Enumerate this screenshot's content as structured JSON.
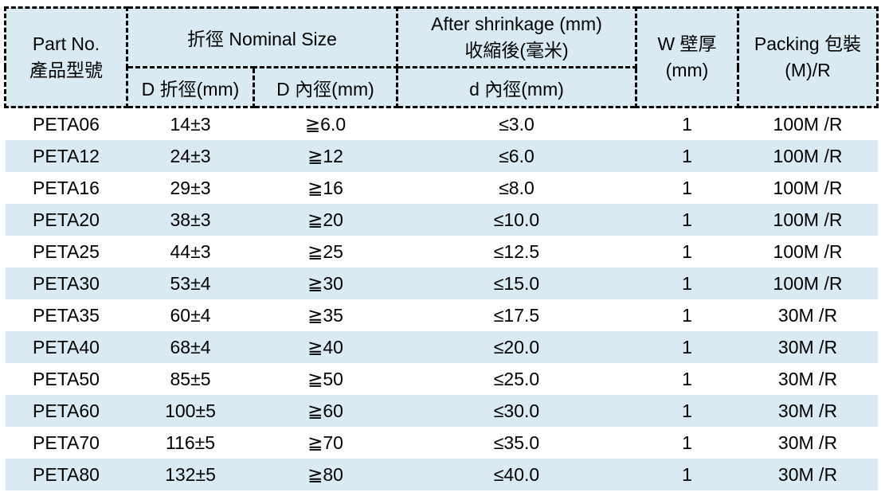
{
  "colors": {
    "header_bg": "#d9eaf2",
    "stripe_bg": "#d9eaf2",
    "row_bg": "#ffffff",
    "border_color": "#000000",
    "text_color": "#000000"
  },
  "header": {
    "part_no_en": "Part No.",
    "part_no_zh": "產品型號",
    "nominal_size": "折徑  Nominal Size",
    "d_flat": "D 折徑(mm)",
    "d_inner": "D 內徑(mm)",
    "after_en": "After shrinkage (mm)",
    "after_zh": "收縮後(毫米)",
    "d_after": "d 內徑(mm)",
    "wall_l1": "W 壁厚",
    "wall_l2": "(mm)",
    "packing_l1": "Packing 包裝",
    "packing_l2": "(M)/R"
  },
  "rows": [
    {
      "part_no": "PETA06",
      "d_flat": "14±3",
      "d_inner": "≧6.0",
      "d_after": "≤3.0",
      "wall": "1",
      "packing": "100M /R"
    },
    {
      "part_no": "PETA12",
      "d_flat": "24±3",
      "d_inner": "≧12",
      "d_after": "≤6.0",
      "wall": "1",
      "packing": "100M /R"
    },
    {
      "part_no": "PETA16",
      "d_flat": "29±3",
      "d_inner": "≧16",
      "d_after": "≤8.0",
      "wall": "1",
      "packing": "100M /R"
    },
    {
      "part_no": "PETA20",
      "d_flat": "38±3",
      "d_inner": "≧20",
      "d_after": "≤10.0",
      "wall": "1",
      "packing": "100M /R"
    },
    {
      "part_no": "PETA25",
      "d_flat": "44±3",
      "d_inner": "≧25",
      "d_after": "≤12.5",
      "wall": "1",
      "packing": "100M /R"
    },
    {
      "part_no": "PETA30",
      "d_flat": "53±4",
      "d_inner": "≧30",
      "d_after": "≤15.0",
      "wall": "1",
      "packing": "100M /R"
    },
    {
      "part_no": "PETA35",
      "d_flat": "60±4",
      "d_inner": "≧35",
      "d_after": "≤17.5",
      "wall": "1",
      "packing": "30M /R"
    },
    {
      "part_no": "PETA40",
      "d_flat": "68±4",
      "d_inner": "≧40",
      "d_after": "≤20.0",
      "wall": "1",
      "packing": "30M /R"
    },
    {
      "part_no": "PETA50",
      "d_flat": "85±5",
      "d_inner": "≧50",
      "d_after": "≤25.0",
      "wall": "1",
      "packing": "30M /R"
    },
    {
      "part_no": "PETA60",
      "d_flat": "100±5",
      "d_inner": "≧60",
      "d_after": "≤30.0",
      "wall": "1",
      "packing": "30M /R"
    },
    {
      "part_no": "PETA70",
      "d_flat": "116±5",
      "d_inner": "≧70",
      "d_after": "≤35.0",
      "wall": "1",
      "packing": "30M /R"
    },
    {
      "part_no": "PETA80",
      "d_flat": "132±5",
      "d_inner": "≧80",
      "d_after": "≤40.0",
      "wall": "1",
      "packing": "30M /R"
    }
  ]
}
